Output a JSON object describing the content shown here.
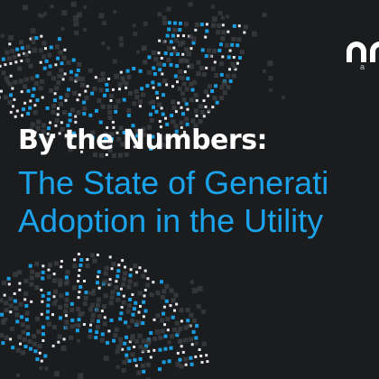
{
  "colors": {
    "background": "#1b1c1e",
    "accent_blue": "#1aa3ea",
    "headline_white": "#ffffff",
    "dot_blue": "#1a9de0",
    "dot_white": "#ffffff",
    "dot_gray": "#3c3e42"
  },
  "logo": {
    "icon": "arch-logo-icon",
    "partial_text": "a"
  },
  "headline": "By the Numbers:",
  "subtitle_line1": "The State of Generati",
  "subtitle_line2": "Adoption in the Utility",
  "decoration": {
    "top_pattern": "pixel-dot-wave",
    "bottom_pattern": "pixel-dot-wave"
  }
}
